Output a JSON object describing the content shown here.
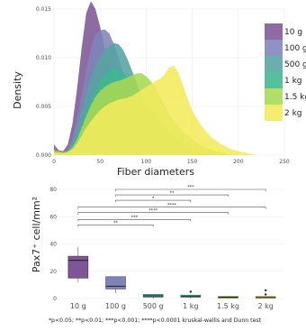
{
  "chart_data": [
    {
      "type": "area",
      "subtype": "density",
      "xlabel": "Fiber diameters",
      "ylabel": "Density",
      "xlim": [
        0,
        250
      ],
      "ylim": [
        0,
        0.015
      ],
      "x_ticks": [
        0,
        50,
        100,
        150,
        200,
        250
      ],
      "y_ticks": [
        0,
        0.005,
        0.01,
        0.015
      ],
      "y_tick_labels": [
        "0.000",
        "0.005",
        "0.010",
        "0.015"
      ],
      "grid": true,
      "legend_position": "right",
      "series": [
        {
          "name": "10 g",
          "color": "#7e5696",
          "points": [
            [
              0,
              0.0011
            ],
            [
              5,
              0.0005
            ],
            [
              10,
              0.0004
            ],
            [
              15,
              0.0011
            ],
            [
              20,
              0.0032
            ],
            [
              25,
              0.0068
            ],
            [
              30,
              0.011
            ],
            [
              35,
              0.0146
            ],
            [
              40,
              0.0158
            ],
            [
              45,
              0.015
            ],
            [
              50,
              0.0132
            ],
            [
              55,
              0.011
            ],
            [
              60,
              0.0089
            ],
            [
              65,
              0.0072
            ],
            [
              70,
              0.0055
            ],
            [
              75,
              0.004
            ],
            [
              80,
              0.0028
            ],
            [
              85,
              0.0018
            ],
            [
              90,
              0.0011
            ],
            [
              95,
              0.0006
            ],
            [
              100,
              0.0003
            ],
            [
              110,
              0.0001
            ],
            [
              120,
              0
            ]
          ]
        },
        {
          "name": "100 g",
          "color": "#7f83b9",
          "points": [
            [
              0,
              0.0006
            ],
            [
              5,
              0.0004
            ],
            [
              10,
              0.0003
            ],
            [
              15,
              0.0006
            ],
            [
              20,
              0.0018
            ],
            [
              25,
              0.0038
            ],
            [
              30,
              0.0062
            ],
            [
              35,
              0.0088
            ],
            [
              40,
              0.011
            ],
            [
              45,
              0.0124
            ],
            [
              50,
              0.0128
            ],
            [
              55,
              0.0129
            ],
            [
              60,
              0.0125
            ],
            [
              65,
              0.0114
            ],
            [
              70,
              0.01
            ],
            [
              75,
              0.0084
            ],
            [
              80,
              0.0066
            ],
            [
              85,
              0.005
            ],
            [
              90,
              0.0036
            ],
            [
              95,
              0.0025
            ],
            [
              100,
              0.0016
            ],
            [
              110,
              0.0006
            ],
            [
              120,
              0.0002
            ],
            [
              130,
              0
            ]
          ]
        },
        {
          "name": "500 g",
          "color": "#56a3a3",
          "points": [
            [
              0,
              0.0003
            ],
            [
              10,
              0.0002
            ],
            [
              15,
              0.0005
            ],
            [
              20,
              0.0013
            ],
            [
              25,
              0.0028
            ],
            [
              30,
              0.0046
            ],
            [
              35,
              0.0064
            ],
            [
              40,
              0.008
            ],
            [
              45,
              0.0092
            ],
            [
              50,
              0.0101
            ],
            [
              55,
              0.0108
            ],
            [
              60,
              0.0112
            ],
            [
              65,
              0.0115
            ],
            [
              70,
              0.0114
            ],
            [
              75,
              0.0108
            ],
            [
              80,
              0.0098
            ],
            [
              85,
              0.0086
            ],
            [
              90,
              0.0073
            ],
            [
              95,
              0.006
            ],
            [
              100,
              0.0048
            ],
            [
              105,
              0.0037
            ],
            [
              110,
              0.0027
            ],
            [
              120,
              0.0013
            ],
            [
              130,
              0.0005
            ],
            [
              140,
              0.0001
            ],
            [
              150,
              0
            ]
          ]
        },
        {
          "name": "1 kg",
          "color": "#3fb78f",
          "points": [
            [
              0,
              0.0004
            ],
            [
              10,
              0.0002
            ],
            [
              15,
              0.0004
            ],
            [
              20,
              0.0009
            ],
            [
              25,
              0.0018
            ],
            [
              30,
              0.003
            ],
            [
              35,
              0.0044
            ],
            [
              40,
              0.0056
            ],
            [
              45,
              0.0066
            ],
            [
              50,
              0.0075
            ],
            [
              55,
              0.0082
            ],
            [
              60,
              0.0086
            ],
            [
              65,
              0.0089
            ],
            [
              70,
              0.0088
            ],
            [
              75,
              0.0085
            ],
            [
              80,
              0.008
            ],
            [
              85,
              0.0073
            ],
            [
              90,
              0.0066
            ],
            [
              95,
              0.0059
            ],
            [
              100,
              0.0052
            ],
            [
              110,
              0.004
            ],
            [
              120,
              0.0029
            ],
            [
              130,
              0.0019
            ],
            [
              140,
              0.0011
            ],
            [
              150,
              0.0005
            ],
            [
              160,
              0.0002
            ],
            [
              170,
              0
            ]
          ]
        },
        {
          "name": "1.5 kg",
          "color": "#a6d854",
          "points": [
            [
              0,
              0.0005
            ],
            [
              10,
              0.0003
            ],
            [
              15,
              0.0004
            ],
            [
              20,
              0.0008
            ],
            [
              25,
              0.0016
            ],
            [
              30,
              0.0028
            ],
            [
              35,
              0.004
            ],
            [
              40,
              0.0051
            ],
            [
              45,
              0.006
            ],
            [
              50,
              0.0066
            ],
            [
              55,
              0.007
            ],
            [
              60,
              0.0073
            ],
            [
              65,
              0.0075
            ],
            [
              70,
              0.0076
            ],
            [
              75,
              0.0078
            ],
            [
              80,
              0.008
            ],
            [
              85,
              0.0082
            ],
            [
              90,
              0.0084
            ],
            [
              95,
              0.0084
            ],
            [
              100,
              0.0081
            ],
            [
              105,
              0.0076
            ],
            [
              110,
              0.0069
            ],
            [
              115,
              0.006
            ],
            [
              120,
              0.0051
            ],
            [
              130,
              0.0035
            ],
            [
              140,
              0.0024
            ],
            [
              150,
              0.0016
            ],
            [
              160,
              0.001
            ],
            [
              170,
              0.0006
            ],
            [
              180,
              0.0003
            ],
            [
              190,
              0.0001
            ],
            [
              200,
              0
            ]
          ]
        },
        {
          "name": "2 kg",
          "color": "#f3eb5c",
          "points": [
            [
              0,
              0.0003
            ],
            [
              10,
              0.0002
            ],
            [
              15,
              0.0003
            ],
            [
              20,
              0.0006
            ],
            [
              25,
              0.0012
            ],
            [
              30,
              0.002
            ],
            [
              35,
              0.0028
            ],
            [
              40,
              0.0035
            ],
            [
              45,
              0.0041
            ],
            [
              50,
              0.0046
            ],
            [
              55,
              0.005
            ],
            [
              60,
              0.0053
            ],
            [
              65,
              0.0055
            ],
            [
              70,
              0.0057
            ],
            [
              75,
              0.0058
            ],
            [
              80,
              0.0059
            ],
            [
              85,
              0.0061
            ],
            [
              90,
              0.0064
            ],
            [
              95,
              0.0067
            ],
            [
              100,
              0.007
            ],
            [
              105,
              0.0073
            ],
            [
              110,
              0.0076
            ],
            [
              115,
              0.0078
            ],
            [
              120,
              0.0083
            ],
            [
              125,
              0.009
            ],
            [
              130,
              0.0092
            ],
            [
              135,
              0.0085
            ],
            [
              140,
              0.0072
            ],
            [
              145,
              0.0058
            ],
            [
              150,
              0.0046
            ],
            [
              160,
              0.003
            ],
            [
              170,
              0.0019
            ],
            [
              180,
              0.0012
            ],
            [
              190,
              0.0007
            ],
            [
              200,
              0.0004
            ],
            [
              210,
              0.0002
            ],
            [
              220,
              0
            ]
          ]
        }
      ]
    },
    {
      "type": "box",
      "ylabel": "Pax7⁺ cell/mm²",
      "ylim": [
        0,
        80
      ],
      "y_ticks": [
        0,
        20,
        40,
        60,
        80
      ],
      "categories": [
        "10 g",
        "100 g",
        "500 g",
        "1 kg",
        "1.5 kg",
        "2 kg"
      ],
      "boxes": [
        {
          "category": "10 g",
          "color": "#7e5696",
          "min": 12,
          "q1": 15,
          "median": 28,
          "q3": 31,
          "max": 38,
          "outliers": []
        },
        {
          "category": "100 g",
          "color": "#7f83b9",
          "min": 4,
          "q1": 7,
          "median": 9,
          "q3": 16,
          "max": 16,
          "outliers": []
        },
        {
          "category": "500 g",
          "color": "#56a3a3",
          "min": 0,
          "q1": 1,
          "median": 2,
          "q3": 3,
          "max": 3,
          "outliers": []
        },
        {
          "category": "1 kg",
          "color": "#3fb78f",
          "min": 0,
          "q1": 1,
          "median": 1.5,
          "q3": 2.5,
          "max": 2.5,
          "outliers": [
            5
          ]
        },
        {
          "category": "1.5 kg",
          "color": "#a6d854",
          "min": 0,
          "q1": 0.5,
          "median": 1,
          "q3": 1.5,
          "max": 1.5,
          "outliers": []
        },
        {
          "category": "2 kg",
          "color": "#f3eb5c",
          "min": 0,
          "q1": 0.3,
          "median": 0.8,
          "q3": 1.5,
          "max": 1.5,
          "outliers": [
            3,
            6
          ]
        }
      ],
      "comparisons": [
        {
          "from": "100 g",
          "to": "2 kg",
          "label": "***",
          "y": 80
        },
        {
          "from": "100 g",
          "to": "1.5 kg",
          "label": "**",
          "y": 76
        },
        {
          "from": "100 g",
          "to": "1 kg",
          "label": "*",
          "y": 72
        },
        {
          "from": "10 g",
          "to": "2 kg",
          "label": "****",
          "y": 67
        },
        {
          "from": "10 g",
          "to": "1.5 kg",
          "label": "****",
          "y": 63
        },
        {
          "from": "10 g",
          "to": "1 kg",
          "label": "***",
          "y": 58
        },
        {
          "from": "10 g",
          "to": "500 g",
          "label": "**",
          "y": 54
        }
      ],
      "footnote": "*p<0.05; **p<0.01; ***p<0.001; ****p<0.0001 kruskal-wallis and Dunn test"
    }
  ]
}
